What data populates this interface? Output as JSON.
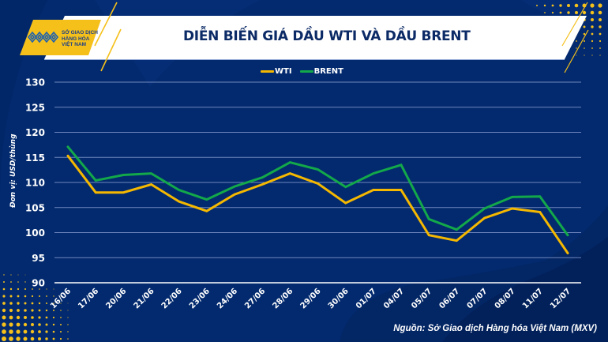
{
  "logo": {
    "text_lines": [
      "SỞ GIAO DỊCH",
      "HÀNG HÓA",
      "VIỆT NAM"
    ]
  },
  "colors": {
    "background": "#032a6e",
    "wti": "#f5b800",
    "brent": "#13a84a",
    "accent_yellow": "#f5c01a",
    "title_text": "#0b2a66"
  },
  "source": "Nguồn: Sở Giao dịch Hàng hóa Việt Nam (MXV)",
  "chart_data": {
    "type": "line",
    "title": "DIỄN BIẾN GIÁ DẦU WTI VÀ DẦU BRENT",
    "xlabel": "",
    "ylabel": "Đơn vị: USD/thùng",
    "ylim": [
      90,
      130
    ],
    "yticks": [
      "130",
      "125",
      "120",
      "115",
      "110",
      "105",
      "100",
      "95",
      "90"
    ],
    "ytick_values": [
      130,
      125,
      120,
      115,
      110,
      105,
      100,
      95,
      90
    ],
    "grid": true,
    "legend_position": "top-center",
    "categories": [
      "16/06",
      "17/06",
      "20/06",
      "21/06",
      "22/06",
      "23/06",
      "24/06",
      "27/06",
      "28/06",
      "29/06",
      "30/06",
      "01/07",
      "04/07",
      "05/07",
      "06/07",
      "07/07",
      "08/07",
      "11/07",
      "12/07"
    ],
    "series": [
      {
        "name": "WTI",
        "values": [
          115.3,
          108.0,
          108.0,
          109.6,
          106.2,
          104.3,
          107.6,
          109.6,
          111.8,
          109.8,
          105.9,
          108.5,
          108.5,
          99.5,
          98.4,
          102.9,
          104.8,
          104.1,
          95.9
        ]
      },
      {
        "name": "BRENT",
        "values": [
          117.1,
          110.4,
          111.5,
          111.8,
          108.5,
          106.6,
          109.2,
          111.0,
          114.0,
          112.6,
          109.1,
          111.8,
          113.5,
          102.7,
          100.6,
          104.8,
          107.1,
          107.2,
          99.5
        ]
      }
    ]
  }
}
